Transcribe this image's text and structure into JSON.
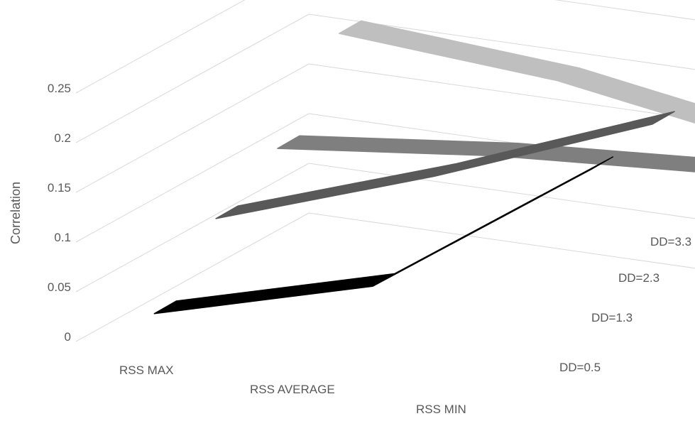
{
  "chart_data": {
    "type": "line",
    "subtype": "3d-line",
    "ylabel": "Correlation",
    "xlabel": "",
    "ylim": [
      0,
      0.25
    ],
    "y_ticks": [
      "0",
      "0.05",
      "0.1",
      "0.15",
      "0.2",
      "0.25"
    ],
    "categories": [
      "RSS MAX",
      "RSS AVERAGE",
      "RSS MIN"
    ],
    "series": [
      {
        "name": "DD=0.5",
        "values": [
          0.02,
          0.075,
          0.22
        ],
        "color": "#000000"
      },
      {
        "name": "DD=1.3",
        "values": [
          0.08,
          0.15,
          0.23
        ],
        "color": "#595959"
      },
      {
        "name": "DD=2.3",
        "values": [
          0.115,
          0.135,
          0.145
        ],
        "color": "#7f7f7f"
      },
      {
        "name": "DD=3.3",
        "values": [
          0.195,
          0.175,
          0.135
        ],
        "color": "#bfbfbf"
      }
    ],
    "grid": true,
    "legend": "none"
  }
}
